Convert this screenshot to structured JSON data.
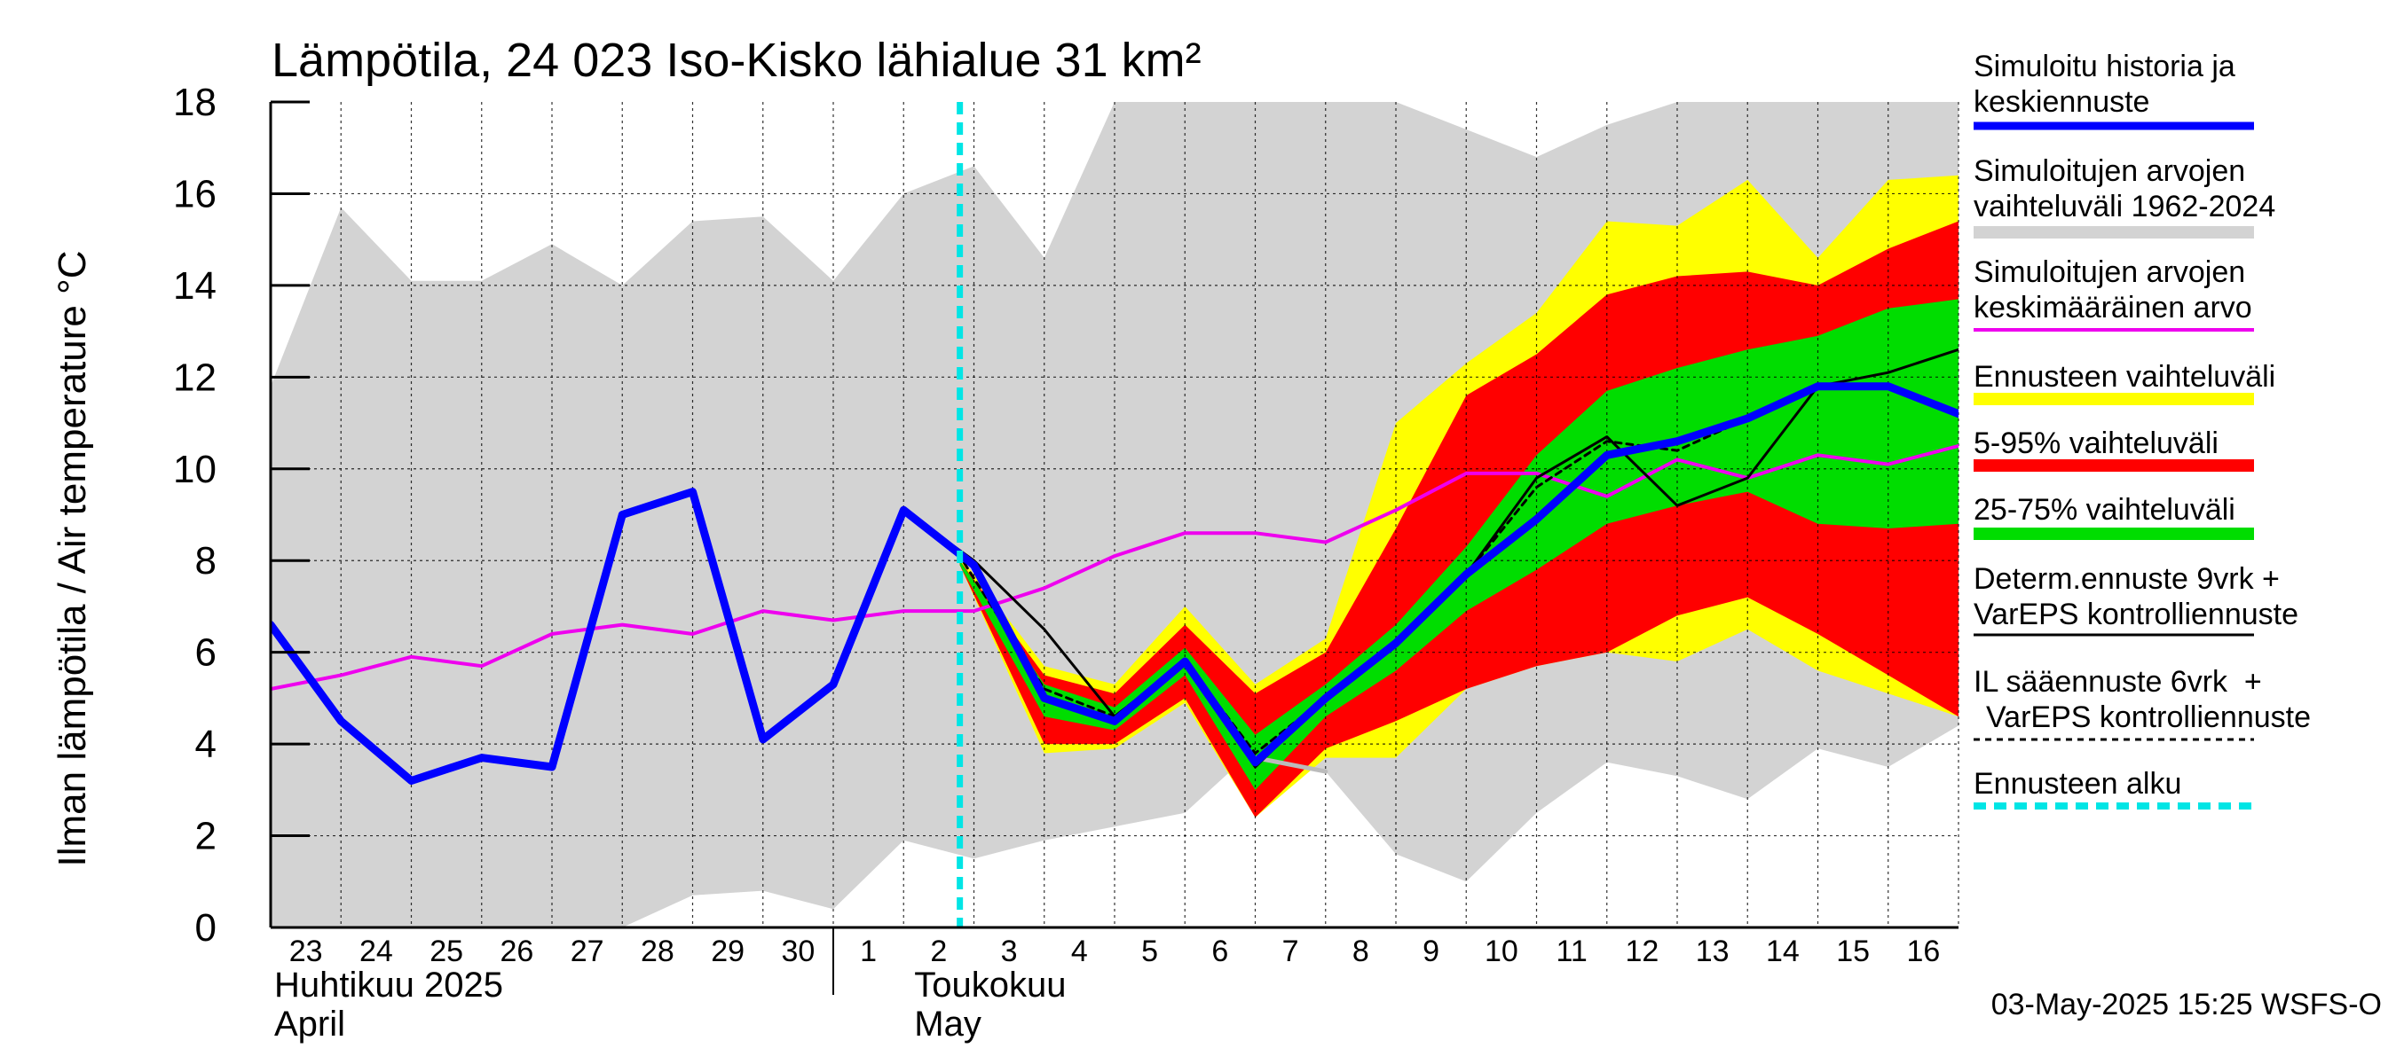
{
  "chart_data": {
    "type": "area",
    "title": "Lämpötila, 24 023 Iso-Kisko lähialue 31 km²",
    "ylabel": "Ilman lämpötila / Air temperature   °C",
    "ylim": [
      0,
      18
    ],
    "y_ticks": [
      0,
      2,
      4,
      6,
      8,
      10,
      12,
      14,
      16,
      18
    ],
    "xlim": [
      23,
      47
    ],
    "day_ticks": [
      {
        "x": 23,
        "label": "23"
      },
      {
        "x": 24,
        "label": "24"
      },
      {
        "x": 25,
        "label": "25"
      },
      {
        "x": 26,
        "label": "26"
      },
      {
        "x": 27,
        "label": "27"
      },
      {
        "x": 28,
        "label": "28"
      },
      {
        "x": 29,
        "label": "29"
      },
      {
        "x": 30,
        "label": "30"
      },
      {
        "x": 31,
        "label": "1"
      },
      {
        "x": 32,
        "label": "2"
      },
      {
        "x": 33,
        "label": "3"
      },
      {
        "x": 34,
        "label": "4"
      },
      {
        "x": 35,
        "label": "5"
      },
      {
        "x": 36,
        "label": "6"
      },
      {
        "x": 37,
        "label": "7"
      },
      {
        "x": 38,
        "label": "8"
      },
      {
        "x": 39,
        "label": "9"
      },
      {
        "x": 40,
        "label": "10"
      },
      {
        "x": 41,
        "label": "11"
      },
      {
        "x": 42,
        "label": "12"
      },
      {
        "x": 43,
        "label": "13"
      },
      {
        "x": 44,
        "label": "14"
      },
      {
        "x": 45,
        "label": "15"
      },
      {
        "x": 46,
        "label": "16"
      }
    ],
    "month_labels": [
      {
        "x": 23,
        "fi": "Huhtikuu  2025",
        "en": "April"
      },
      {
        "x": 32,
        "fi": "Toukokuu",
        "en": "May"
      }
    ],
    "month_divider_x": 31,
    "forecast_start_x": 32.8,
    "timestamp": "03-May-2025 15:25 WSFS-O",
    "series": {
      "history_range": {
        "name": "Simuloitujen arvojen vaihteluväli 1962-2024",
        "color": "#d3d3d3",
        "upper": [
          [
            23,
            11.8
          ],
          [
            24,
            15.7
          ],
          [
            25,
            14.1
          ],
          [
            26,
            14.1
          ],
          [
            27,
            14.9
          ],
          [
            28,
            14
          ],
          [
            29,
            15.4
          ],
          [
            30,
            15.5
          ],
          [
            31,
            14.1
          ],
          [
            32,
            16
          ],
          [
            33,
            16.6
          ],
          [
            34,
            14.6
          ],
          [
            35,
            18
          ],
          [
            36,
            18
          ],
          [
            37,
            18
          ],
          [
            38,
            18
          ],
          [
            39,
            18
          ],
          [
            40,
            17.4
          ],
          [
            41,
            16.8
          ],
          [
            42,
            17.5
          ],
          [
            43,
            18
          ],
          [
            44,
            18
          ],
          [
            45,
            18
          ],
          [
            46,
            18
          ],
          [
            47,
            18
          ]
        ],
        "lower": [
          [
            23,
            0
          ],
          [
            24,
            0
          ],
          [
            25,
            0
          ],
          [
            26,
            0
          ],
          [
            27,
            0
          ],
          [
            28,
            0
          ],
          [
            29,
            0.7
          ],
          [
            30,
            0.8
          ],
          [
            31,
            0.4
          ],
          [
            32,
            1.9
          ],
          [
            33,
            1.5
          ],
          [
            34,
            1.9
          ],
          [
            35,
            2.2
          ],
          [
            36,
            2.5
          ],
          [
            37,
            3.9
          ],
          [
            38,
            3.4
          ],
          [
            39,
            1.6
          ],
          [
            40,
            1
          ],
          [
            41,
            2.5
          ],
          [
            42,
            3.6
          ],
          [
            43,
            3.3
          ],
          [
            44,
            2.8
          ],
          [
            45,
            3.9
          ],
          [
            46,
            3.5
          ],
          [
            47,
            4.4
          ]
        ]
      },
      "forecast_range": {
        "name": "Ennusteen vaihteluväli",
        "color": "#ffff00",
        "upper": [
          [
            32.8,
            8.1
          ],
          [
            34,
            5.7
          ],
          [
            35,
            5.3
          ],
          [
            36,
            7
          ],
          [
            37,
            5.3
          ],
          [
            38,
            6.3
          ],
          [
            39,
            11
          ],
          [
            40,
            12.3
          ],
          [
            41,
            13.4
          ],
          [
            42,
            15.4
          ],
          [
            43,
            15.3
          ],
          [
            44,
            16.3
          ],
          [
            45,
            14.6
          ],
          [
            46,
            16.3
          ],
          [
            47,
            16.4
          ]
        ],
        "lower": [
          [
            32.8,
            7.9
          ],
          [
            34,
            3.8
          ],
          [
            35,
            3.9
          ],
          [
            36,
            4.9
          ],
          [
            37,
            2.4
          ],
          [
            38,
            3.7
          ],
          [
            39,
            3.7
          ],
          [
            40,
            5.2
          ],
          [
            41,
            5.7
          ],
          [
            42,
            6
          ],
          [
            43,
            5.8
          ],
          [
            44,
            6.5
          ],
          [
            45,
            5.6
          ],
          [
            46,
            5.1
          ],
          [
            47,
            4.6
          ]
        ]
      },
      "p5_95": {
        "name": "5-95% vaihteluväli",
        "color": "#ff0000",
        "upper": [
          [
            32.8,
            8
          ],
          [
            34,
            5.5
          ],
          [
            35,
            5.1
          ],
          [
            36,
            6.6
          ],
          [
            37,
            5.1
          ],
          [
            38,
            6
          ],
          [
            39,
            8.7
          ],
          [
            40,
            11.6
          ],
          [
            41,
            12.5
          ],
          [
            42,
            13.8
          ],
          [
            43,
            14.2
          ],
          [
            44,
            14.3
          ],
          [
            45,
            14
          ],
          [
            46,
            14.8
          ],
          [
            47,
            15.4
          ]
        ],
        "lower": [
          [
            32.8,
            7.9
          ],
          [
            34,
            4
          ],
          [
            35,
            4
          ],
          [
            36,
            5
          ],
          [
            37,
            2.4
          ],
          [
            38,
            3.9
          ],
          [
            39,
            4.5
          ],
          [
            40,
            5.2
          ],
          [
            41,
            5.7
          ],
          [
            42,
            6
          ],
          [
            43,
            6.8
          ],
          [
            44,
            7.2
          ],
          [
            45,
            6.4
          ],
          [
            46,
            5.5
          ],
          [
            47,
            4.6
          ]
        ]
      },
      "p25_75": {
        "name": "25-75% vaihteluväli",
        "color": "#00dd00",
        "upper": [
          [
            32.8,
            8
          ],
          [
            34,
            5.3
          ],
          [
            35,
            4.8
          ],
          [
            36,
            6.1
          ],
          [
            37,
            4.2
          ],
          [
            38,
            5.3
          ],
          [
            39,
            6.6
          ],
          [
            40,
            8.3
          ],
          [
            41,
            10.3
          ],
          [
            42,
            11.7
          ],
          [
            43,
            12.2
          ],
          [
            44,
            12.6
          ],
          [
            45,
            12.9
          ],
          [
            46,
            13.5
          ],
          [
            47,
            13.7
          ]
        ],
        "lower": [
          [
            32.8,
            7.9
          ],
          [
            34,
            4.6
          ],
          [
            35,
            4.3
          ],
          [
            36,
            5.5
          ],
          [
            37,
            3
          ],
          [
            38,
            4.6
          ],
          [
            39,
            5.6
          ],
          [
            40,
            6.9
          ],
          [
            41,
            7.8
          ],
          [
            42,
            8.8
          ],
          [
            43,
            9.2
          ],
          [
            44,
            9.5
          ],
          [
            45,
            8.8
          ],
          [
            46,
            8.7
          ],
          [
            47,
            8.8
          ]
        ]
      },
      "mean": {
        "name": "Simuloitujen arvojen keskimääräinen arvo",
        "color": "#ee00ee",
        "points": [
          [
            23,
            5.2
          ],
          [
            24,
            5.5
          ],
          [
            25,
            5.9
          ],
          [
            26,
            5.7
          ],
          [
            27,
            6.4
          ],
          [
            28,
            6.6
          ],
          [
            29,
            6.4
          ],
          [
            30,
            6.9
          ],
          [
            31,
            6.7
          ],
          [
            32,
            6.9
          ],
          [
            33,
            6.9
          ],
          [
            34,
            7.4
          ],
          [
            35,
            8.1
          ],
          [
            36,
            8.6
          ],
          [
            37,
            8.6
          ],
          [
            38,
            8.4
          ],
          [
            39,
            9.1
          ],
          [
            40,
            9.9
          ],
          [
            41,
            9.9
          ],
          [
            42,
            9.4
          ],
          [
            43,
            10.2
          ],
          [
            44,
            9.8
          ],
          [
            45,
            10.3
          ],
          [
            46,
            10.1
          ],
          [
            47,
            10.5
          ]
        ]
      },
      "il_forecast": {
        "name": "IL sääennuste 6vrk + VarEPS kontrolliennuste",
        "color": "#000000",
        "dashed": true,
        "points": [
          [
            32,
            9.1
          ],
          [
            32.8,
            8.1
          ],
          [
            34,
            5.2
          ],
          [
            35,
            4.6
          ],
          [
            36,
            5.8
          ],
          [
            37,
            3.8
          ],
          [
            38,
            5
          ],
          [
            39,
            6.2
          ],
          [
            40,
            7.7
          ],
          [
            41,
            9.6
          ],
          [
            42,
            10.6
          ],
          [
            43,
            10.4
          ],
          [
            44,
            11.1
          ],
          [
            45,
            11.8
          ]
        ]
      },
      "control_grey": {
        "name": "",
        "color": "#bbbbbb",
        "points": [
          [
            37,
            3.7
          ],
          [
            38,
            3.4
          ]
        ]
      },
      "determ": {
        "name": "Determ.ennuste 9vrk + VarEPS kontrolliennuste",
        "color": "#000000",
        "points": [
          [
            31,
            5.3
          ],
          [
            32,
            9.1
          ],
          [
            33,
            8
          ],
          [
            34,
            6.5
          ],
          [
            35,
            4.6
          ],
          [
            36,
            5.8
          ],
          [
            37,
            3.5
          ],
          [
            38,
            5
          ],
          [
            39,
            6.2
          ],
          [
            40,
            7.7
          ],
          [
            41,
            9.8
          ],
          [
            42,
            10.7
          ],
          [
            43,
            9.2
          ],
          [
            44,
            9.8
          ],
          [
            45,
            11.8
          ],
          [
            46,
            12.1
          ],
          [
            47,
            12.6
          ]
        ]
      },
      "sim_history": {
        "name": "Simuloitu historia ja keskiennuste",
        "color": "#0000ff",
        "points": [
          [
            23,
            6.6
          ],
          [
            24,
            4.5
          ],
          [
            25,
            3.2
          ],
          [
            26,
            3.7
          ],
          [
            27,
            3.5
          ],
          [
            28,
            9
          ],
          [
            29,
            9.5
          ],
          [
            30,
            4.1
          ],
          [
            31,
            5.3
          ],
          [
            32,
            9.1
          ],
          [
            33,
            7.9
          ],
          [
            34,
            5
          ],
          [
            35,
            4.5
          ],
          [
            36,
            5.8
          ],
          [
            37,
            3.6
          ],
          [
            38,
            5
          ],
          [
            39,
            6.2
          ],
          [
            40,
            7.7
          ],
          [
            41,
            8.9
          ],
          [
            42,
            10.3
          ],
          [
            43,
            10.6
          ],
          [
            44,
            11.1
          ],
          [
            45,
            11.8
          ],
          [
            46,
            11.8
          ],
          [
            47,
            11.2
          ]
        ]
      }
    },
    "legend": [
      {
        "label": "Simuloitu historia ja keskiennuste",
        "color": "#0000ff",
        "style": "line-thick"
      },
      {
        "label": "Simuloitujen arvojen vaihteluväli 1962-2024",
        "color": "#d3d3d3",
        "style": "band"
      },
      {
        "label": "Simuloitujen arvojen keskimääräinen arvo",
        "color": "#ee00ee",
        "style": "line"
      },
      {
        "label": "Ennusteen vaihteluväli",
        "color": "#ffff00",
        "style": "band"
      },
      {
        "label": "5-95% vaihteluväli",
        "color": "#ff0000",
        "style": "band"
      },
      {
        "label": "25-75% vaihteluväli",
        "color": "#00dd00",
        "style": "band"
      },
      {
        "label": "Determ.ennuste 9vrk + VarEPS kontrolliennuste",
        "color": "#000000",
        "style": "line-thin"
      },
      {
        "label": "IL sääennuste 6vrk  +   VarEPS kontrolliennuste",
        "color": "#000000",
        "style": "dashed"
      },
      {
        "label": "Ennusteen alku",
        "color": "#00e5e5",
        "style": "dashed-thick"
      }
    ]
  }
}
